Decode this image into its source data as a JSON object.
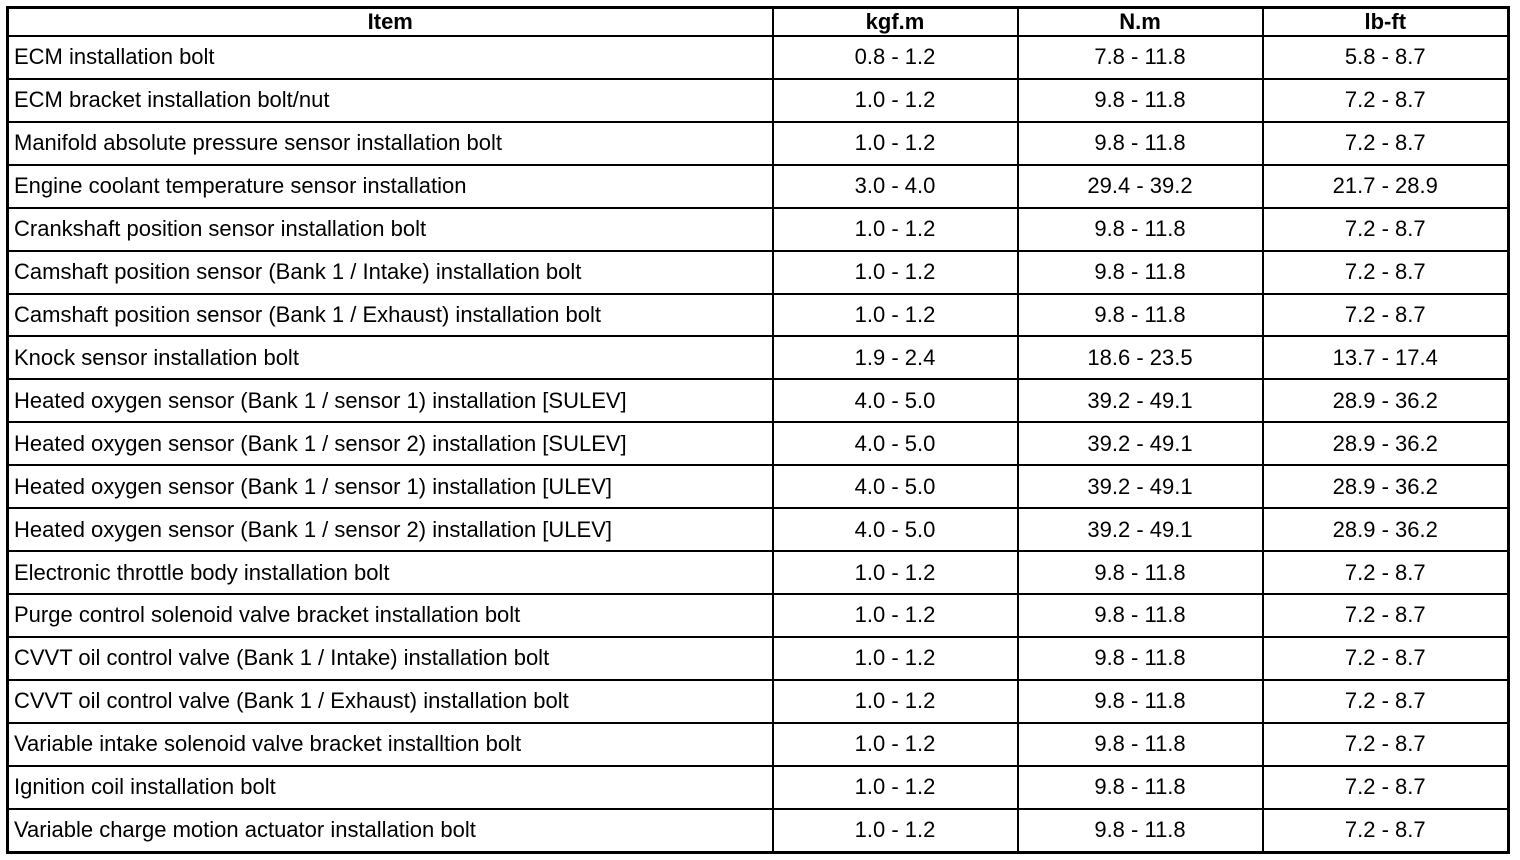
{
  "table": {
    "header": [
      "Item",
      "kgf.m",
      "N.m",
      "lb-ft"
    ],
    "rows": [
      [
        "ECM installation bolt",
        "0.8 - 1.2",
        "7.8 - 11.8",
        "5.8 - 8.7"
      ],
      [
        "ECM bracket installation bolt/nut",
        "1.0 - 1.2",
        "9.8 - 11.8",
        "7.2 - 8.7"
      ],
      [
        "Manifold absolute pressure sensor installation bolt",
        "1.0 - 1.2",
        "9.8 - 11.8",
        "7.2 - 8.7"
      ],
      [
        "Engine coolant temperature sensor installation",
        "3.0 - 4.0",
        "29.4 - 39.2",
        "21.7 - 28.9"
      ],
      [
        "Crankshaft position sensor installation bolt",
        "1.0 - 1.2",
        "9.8 - 11.8",
        "7.2 - 8.7"
      ],
      [
        "Camshaft position sensor (Bank 1 / Intake) installation bolt",
        "1.0 - 1.2",
        "9.8 - 11.8",
        "7.2 - 8.7"
      ],
      [
        "Camshaft position sensor (Bank 1 / Exhaust) installation bolt",
        "1.0 - 1.2",
        "9.8 - 11.8",
        "7.2 - 8.7"
      ],
      [
        "Knock sensor installation bolt",
        "1.9 - 2.4",
        "18.6 - 23.5",
        "13.7 - 17.4"
      ],
      [
        "Heated oxygen sensor (Bank 1 / sensor 1) installation [SULEV]",
        "4.0 - 5.0",
        "39.2 - 49.1",
        "28.9 - 36.2"
      ],
      [
        "Heated oxygen sensor (Bank 1 / sensor 2) installation [SULEV]",
        "4.0 - 5.0",
        "39.2 - 49.1",
        "28.9 - 36.2"
      ],
      [
        "Heated oxygen sensor (Bank 1 / sensor 1) installation [ULEV]",
        "4.0 - 5.0",
        "39.2 - 49.1",
        "28.9 - 36.2"
      ],
      [
        "Heated oxygen sensor (Bank 1 / sensor 2) installation [ULEV]",
        "4.0 - 5.0",
        "39.2 - 49.1",
        "28.9 - 36.2"
      ],
      [
        "Electronic throttle body installation bolt",
        "1.0 - 1.2",
        "9.8 - 11.8",
        "7.2 - 8.7"
      ],
      [
        "Purge control solenoid valve bracket installation bolt",
        "1.0 - 1.2",
        "9.8 - 11.8",
        "7.2 - 8.7"
      ],
      [
        "CVVT oil control valve (Bank 1 / Intake) installation bolt",
        "1.0 - 1.2",
        "9.8 - 11.8",
        "7.2 - 8.7"
      ],
      [
        "CVVT oil control valve (Bank 1 / Exhaust) installation bolt",
        "1.0 - 1.2",
        "9.8 - 11.8",
        "7.2 - 8.7"
      ],
      [
        "Variable intake solenoid valve bracket installtion bolt",
        "1.0 - 1.2",
        "9.8 - 11.8",
        "7.2 - 8.7"
      ],
      [
        "Ignition coil installation bolt",
        "1.0 - 1.2",
        "9.8 - 11.8",
        "7.2 - 8.7"
      ],
      [
        "Variable charge motion actuator installation bolt",
        "1.0 - 1.2",
        "9.8 - 11.8",
        "7.2 - 8.7"
      ]
    ]
  }
}
